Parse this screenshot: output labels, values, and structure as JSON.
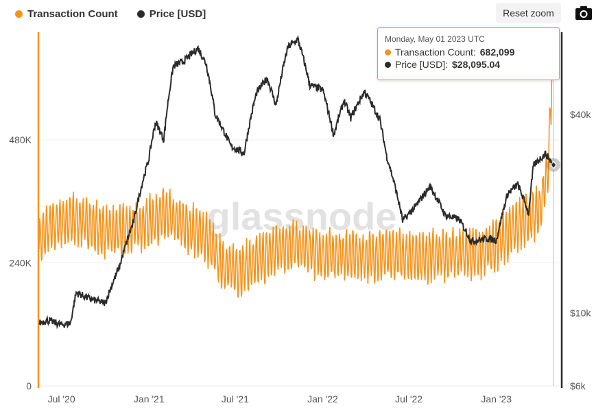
{
  "legend": {
    "tx_label": "Transaction Count",
    "price_label": "Price [USD]"
  },
  "toolbar": {
    "reset_zoom_label": "Reset zoom",
    "camera_icon": "camera-icon"
  },
  "watermark": "glassnode",
  "tooltip": {
    "date": "Monday, May 01 2023 UTC",
    "tx_label": "Transaction Count:",
    "tx_value": "682,099",
    "price_label": "Price [USD]:",
    "price_value": "$28,095.04"
  },
  "colors": {
    "transaction_count": "#f7931a",
    "price": "#2b2b2b",
    "grid": "#ebebeb"
  },
  "chart_data": {
    "type": "line",
    "title": "",
    "xlabel": "",
    "x_range": [
      "2020-05-15",
      "2023-05-01"
    ],
    "x_ticks": [
      {
        "date": "2020-07-01",
        "label": "Jul '20"
      },
      {
        "date": "2021-01-01",
        "label": "Jan '21"
      },
      {
        "date": "2021-07-01",
        "label": "Jul '21"
      },
      {
        "date": "2022-01-01",
        "label": "Jan '22"
      },
      {
        "date": "2022-07-01",
        "label": "Jul '22"
      },
      {
        "date": "2023-01-01",
        "label": "Jan '23"
      }
    ],
    "y_left": {
      "label": "",
      "range": [
        0,
        690000
      ],
      "ticks": [
        {
          "value": 0,
          "label": "0"
        },
        {
          "value": 240000,
          "label": "240K"
        },
        {
          "value": 480000,
          "label": "480K"
        }
      ]
    },
    "y_right": {
      "label": "",
      "scale": "log",
      "range": [
        6000,
        71000
      ],
      "ticks": [
        {
          "value": 6000,
          "label": "$6k"
        },
        {
          "value": 10000,
          "label": "$10k"
        },
        {
          "value": 40000,
          "label": "$40k"
        }
      ]
    },
    "legend_position": "top-left",
    "grid": true,
    "series": [
      {
        "name": "Transaction Count",
        "axis": "left",
        "color": "#f7931a",
        "points": [
          [
            "2020-05-15",
            280000
          ],
          [
            "2020-06-01",
            305000
          ],
          [
            "2020-07-01",
            320000
          ],
          [
            "2020-08-01",
            325000
          ],
          [
            "2020-09-01",
            315000
          ],
          [
            "2020-10-01",
            300000
          ],
          [
            "2020-11-01",
            300000
          ],
          [
            "2020-12-01",
            310000
          ],
          [
            "2021-01-01",
            320000
          ],
          [
            "2021-02-01",
            335000
          ],
          [
            "2021-03-01",
            320000
          ],
          [
            "2021-04-01",
            305000
          ],
          [
            "2021-05-01",
            290000
          ],
          [
            "2021-06-01",
            240000
          ],
          [
            "2021-07-01",
            225000
          ],
          [
            "2021-08-01",
            235000
          ],
          [
            "2021-09-01",
            250000
          ],
          [
            "2021-10-01",
            270000
          ],
          [
            "2021-11-01",
            275000
          ],
          [
            "2021-12-01",
            265000
          ],
          [
            "2022-01-01",
            255000
          ],
          [
            "2022-02-01",
            255000
          ],
          [
            "2022-03-01",
            255000
          ],
          [
            "2022-04-01",
            252000
          ],
          [
            "2022-05-01",
            255000
          ],
          [
            "2022-06-01",
            255000
          ],
          [
            "2022-07-01",
            255000
          ],
          [
            "2022-08-01",
            252000
          ],
          [
            "2022-09-01",
            255000
          ],
          [
            "2022-10-01",
            258000
          ],
          [
            "2022-11-01",
            260000
          ],
          [
            "2022-12-01",
            262000
          ],
          [
            "2023-01-01",
            275000
          ],
          [
            "2023-02-01",
            300000
          ],
          [
            "2023-03-01",
            325000
          ],
          [
            "2023-04-01",
            340000
          ],
          [
            "2023-04-20",
            420000
          ],
          [
            "2023-05-01",
            682099
          ]
        ],
        "weekly_oscillation": 45000
      },
      {
        "name": "Price [USD]",
        "axis": "right",
        "color": "#2b2b2b",
        "points": [
          [
            "2020-05-15",
            9300
          ],
          [
            "2020-06-01",
            9500
          ],
          [
            "2020-07-01",
            9200
          ],
          [
            "2020-07-20",
            9300
          ],
          [
            "2020-08-01",
            11500
          ],
          [
            "2020-09-01",
            11000
          ],
          [
            "2020-10-01",
            10700
          ],
          [
            "2020-10-31",
            13800
          ],
          [
            "2020-11-30",
            19000
          ],
          [
            "2020-12-31",
            29000
          ],
          [
            "2021-01-15",
            38000
          ],
          [
            "2021-02-01",
            33500
          ],
          [
            "2021-02-21",
            56000
          ],
          [
            "2021-03-15",
            58000
          ],
          [
            "2021-04-14",
            63500
          ],
          [
            "2021-05-01",
            57000
          ],
          [
            "2021-05-20",
            40000
          ],
          [
            "2021-06-22",
            32000
          ],
          [
            "2021-07-20",
            30500
          ],
          [
            "2021-08-15",
            46500
          ],
          [
            "2021-09-06",
            51500
          ],
          [
            "2021-09-25",
            42500
          ],
          [
            "2021-10-20",
            64000
          ],
          [
            "2021-11-10",
            67500
          ],
          [
            "2021-12-05",
            49000
          ],
          [
            "2022-01-01",
            47500
          ],
          [
            "2022-01-24",
            34500
          ],
          [
            "2022-02-15",
            44000
          ],
          [
            "2022-03-01",
            39000
          ],
          [
            "2022-03-30",
            47000
          ],
          [
            "2022-05-01",
            38500
          ],
          [
            "2022-05-15",
            30000
          ],
          [
            "2022-06-18",
            19000
          ],
          [
            "2022-07-15",
            21000
          ],
          [
            "2022-08-15",
            24200
          ],
          [
            "2022-09-15",
            19800
          ],
          [
            "2022-10-15",
            19200
          ],
          [
            "2022-11-09",
            16500
          ],
          [
            "2022-12-15",
            16800
          ],
          [
            "2023-01-01",
            16600
          ],
          [
            "2023-01-25",
            23000
          ],
          [
            "2023-02-15",
            24500
          ],
          [
            "2023-03-10",
            20000
          ],
          [
            "2023-03-20",
            28000
          ],
          [
            "2023-04-14",
            30400
          ],
          [
            "2023-05-01",
            28095.04
          ]
        ]
      }
    ],
    "hover": {
      "date": "2023-05-01",
      "transaction_count": 682099,
      "price": 28095.04
    }
  }
}
